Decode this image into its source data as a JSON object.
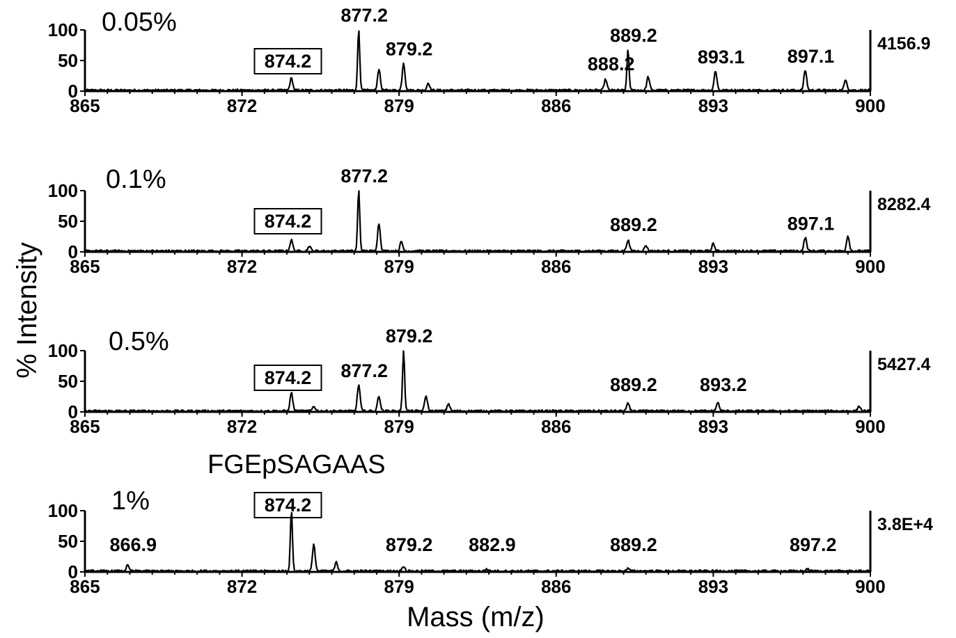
{
  "figure": {
    "ylabel": "% Intensity",
    "xlabel": "Mass (m/z)",
    "annotation": "FGEpSAGAAS"
  },
  "chart_data": [
    {
      "type": "line",
      "label": "0.05%",
      "max_intensity_label": "4156.9",
      "xlim": [
        865,
        900
      ],
      "ylim": [
        0,
        100
      ],
      "xticks": [
        "865",
        "872",
        "879",
        "886",
        "893",
        "900"
      ],
      "yticks": [
        "0",
        "50",
        "100"
      ],
      "boxed_label": "874.2",
      "peaks": [
        {
          "x": 874.2,
          "y": 20
        },
        {
          "x": 877.2,
          "y": 100
        },
        {
          "x": 878.1,
          "y": 35
        },
        {
          "x": 879.2,
          "y": 45
        },
        {
          "x": 880.3,
          "y": 12
        },
        {
          "x": 888.2,
          "y": 18
        },
        {
          "x": 889.2,
          "y": 67
        },
        {
          "x": 890.1,
          "y": 22
        },
        {
          "x": 893.1,
          "y": 32
        },
        {
          "x": 897.1,
          "y": 33
        },
        {
          "x": 898.9,
          "y": 18
        }
      ],
      "labels": [
        {
          "text": "877.2",
          "x": 877.2,
          "y": 100
        },
        {
          "text": "879.2",
          "x": 879.2,
          "y": 45
        },
        {
          "text": "888.2",
          "x": 888.2,
          "y": 18
        },
        {
          "text": "889.2",
          "x": 889.2,
          "y": 67
        },
        {
          "text": "893.1",
          "x": 893.1,
          "y": 32
        },
        {
          "text": "897.1",
          "x": 897.1,
          "y": 33
        }
      ]
    },
    {
      "type": "line",
      "label": "0.1%",
      "max_intensity_label": "8282.4",
      "xlim": [
        865,
        900
      ],
      "ylim": [
        0,
        100
      ],
      "xticks": [
        "865",
        "872",
        "879",
        "886",
        "893",
        "900"
      ],
      "yticks": [
        "0",
        "50",
        "100"
      ],
      "boxed_label": "874.2",
      "peaks": [
        {
          "x": 874.2,
          "y": 18
        },
        {
          "x": 875.0,
          "y": 8
        },
        {
          "x": 877.2,
          "y": 100
        },
        {
          "x": 878.1,
          "y": 45
        },
        {
          "x": 879.1,
          "y": 15
        },
        {
          "x": 889.2,
          "y": 18
        },
        {
          "x": 890.0,
          "y": 9
        },
        {
          "x": 893.0,
          "y": 12
        },
        {
          "x": 897.1,
          "y": 22
        },
        {
          "x": 899.0,
          "y": 25
        }
      ],
      "labels": [
        {
          "text": "877.2",
          "x": 877.2,
          "y": 100
        },
        {
          "text": "889.2",
          "x": 889.2,
          "y": 18
        },
        {
          "text": "897.1",
          "x": 897.1,
          "y": 22
        }
      ]
    },
    {
      "type": "line",
      "label": "0.5%",
      "max_intensity_label": "5427.4",
      "xlim": [
        865,
        900
      ],
      "ylim": [
        0,
        100
      ],
      "xticks": [
        "865",
        "872",
        "879",
        "886",
        "893",
        "900"
      ],
      "yticks": [
        "0",
        "50",
        "100"
      ],
      "boxed_label": "874.2",
      "peaks": [
        {
          "x": 874.2,
          "y": 30
        },
        {
          "x": 875.2,
          "y": 8
        },
        {
          "x": 877.2,
          "y": 43
        },
        {
          "x": 878.1,
          "y": 25
        },
        {
          "x": 879.2,
          "y": 100
        },
        {
          "x": 880.2,
          "y": 25
        },
        {
          "x": 881.2,
          "y": 12
        },
        {
          "x": 889.2,
          "y": 12
        },
        {
          "x": 893.2,
          "y": 14
        },
        {
          "x": 899.5,
          "y": 8
        }
      ],
      "labels": [
        {
          "text": "879.2",
          "x": 879.2,
          "y": 100
        },
        {
          "text": "877.2",
          "x": 877.2,
          "y": 43
        },
        {
          "text": "889.2",
          "x": 889.2,
          "y": 12
        },
        {
          "text": "893.2",
          "x": 893.2,
          "y": 14
        }
      ]
    },
    {
      "type": "line",
      "label": "1%",
      "max_intensity_label": "3.8E+4",
      "xlim": [
        865,
        900
      ],
      "ylim": [
        0,
        100
      ],
      "xticks": [
        "865",
        "872",
        "879",
        "886",
        "893",
        "900"
      ],
      "yticks": [
        "0",
        "50",
        "100"
      ],
      "boxed_label": "874.2",
      "peaks": [
        {
          "x": 866.9,
          "y": 9
        },
        {
          "x": 874.2,
          "y": 100
        },
        {
          "x": 875.2,
          "y": 43
        },
        {
          "x": 876.2,
          "y": 14
        },
        {
          "x": 879.2,
          "y": 8
        },
        {
          "x": 882.9,
          "y": 3
        },
        {
          "x": 889.2,
          "y": 4
        },
        {
          "x": 897.2,
          "y": 3
        }
      ],
      "labels": [
        {
          "text": "866.9",
          "x": 866.9,
          "y": 9
        },
        {
          "text": "879.2",
          "x": 879.2,
          "y": 8
        },
        {
          "text": "882.9",
          "x": 882.9,
          "y": 3
        },
        {
          "text": "889.2",
          "x": 889.2,
          "y": 4
        },
        {
          "text": "897.2",
          "x": 897.2,
          "y": 3
        }
      ]
    }
  ]
}
